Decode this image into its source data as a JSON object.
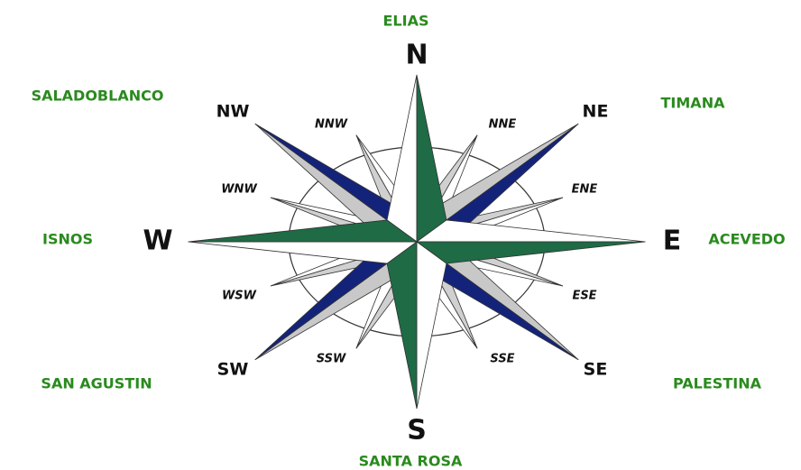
{
  "cardinals": [
    "N",
    "E",
    "S",
    "W"
  ],
  "intercardinals": [
    "NE",
    "SE",
    "SW",
    "NW"
  ],
  "secondary": [
    "NNE",
    "ENE",
    "ESE",
    "SSE",
    "SSW",
    "WSW",
    "WNW",
    "NNW"
  ],
  "places": {
    "north": "ELIAS",
    "northeast": "TIMANA",
    "east": "ACEVEDO",
    "southeast": "PALESTINA",
    "south": "SANTA ROSA",
    "southwest": "SAN AGUSTIN",
    "west": "ISNOS",
    "northwest": "SALADOBLANCO"
  }
}
